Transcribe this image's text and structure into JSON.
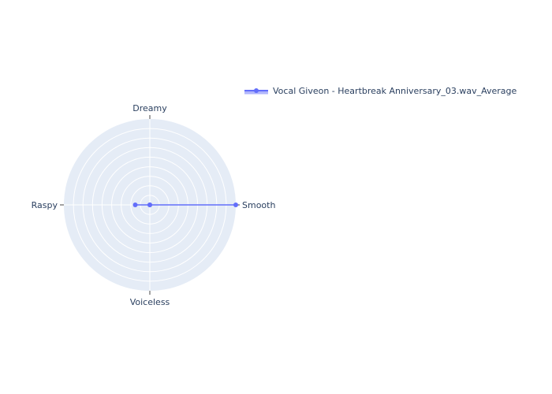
{
  "chart_data": {
    "type": "radar",
    "axes": [
      "Smooth",
      "Dreamy",
      "Raspy",
      "Voiceless"
    ],
    "series": [
      {
        "name": "Vocal Giveon - Heartbreak Anniversary_03.wav_Average",
        "values": [
          1.0,
          0.0,
          0.17,
          0.0
        ],
        "color": "#636efa"
      }
    ],
    "range": [
      0,
      1
    ],
    "grid": true,
    "legend_position": "top-right",
    "background_color": "#e5ecf6"
  }
}
